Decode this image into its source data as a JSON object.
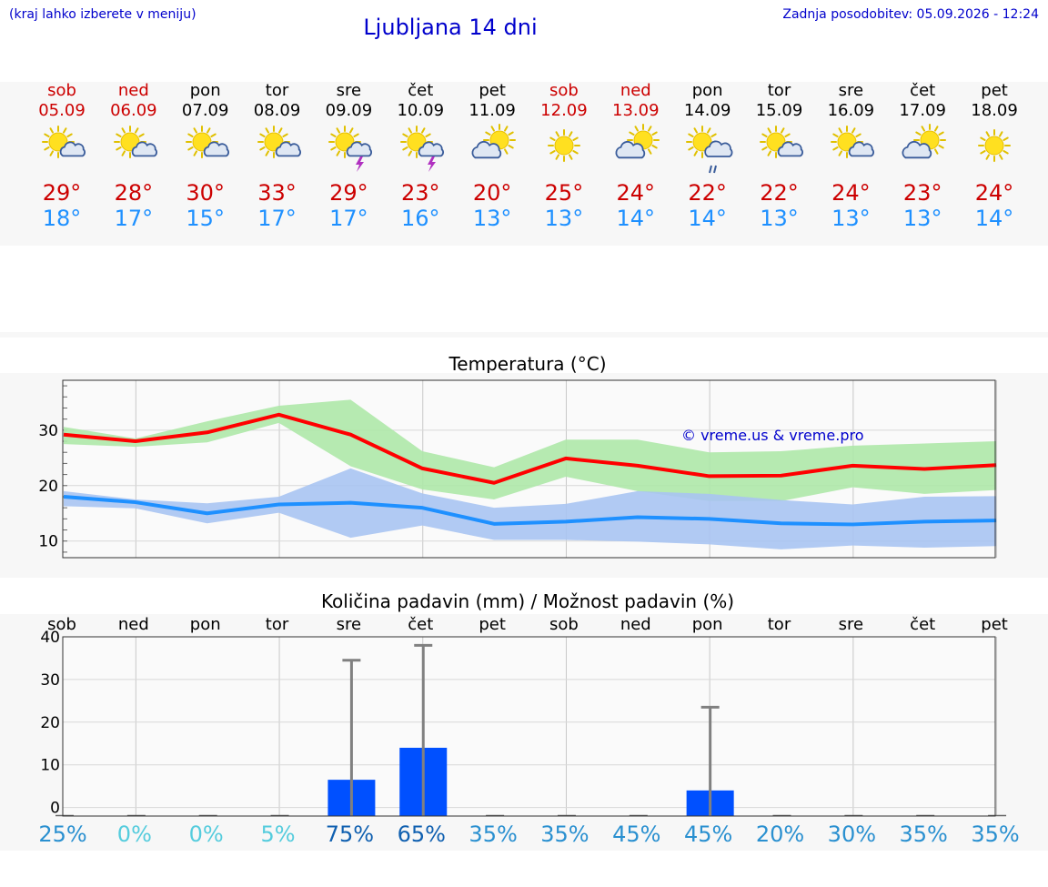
{
  "header": {
    "note": "(kraj lahko izberete v meniju)",
    "title": "Ljubljana 14 dni",
    "updated": "Zadnja posodobitev: 05.09.2026 - 12:24"
  },
  "colors": {
    "weekend": "#cc0000",
    "weekday": "#000000",
    "max_line": "#ff0000",
    "min_line": "#1e90ff",
    "max_band": "#aee8a8",
    "min_band": "#a9c4f2",
    "bar": "#0050ff",
    "whisker": "#808080"
  },
  "days": [
    {
      "name": "sob",
      "date": "05.09",
      "weekend": true,
      "icon": "sun-cloud-icon",
      "max": "29°",
      "min": "18°",
      "prob": "25%"
    },
    {
      "name": "ned",
      "date": "06.09",
      "weekend": true,
      "icon": "sun-cloud-icon",
      "max": "28°",
      "min": "17°",
      "prob": "0%"
    },
    {
      "name": "pon",
      "date": "07.09",
      "weekend": false,
      "icon": "sun-cloud-icon",
      "max": "30°",
      "min": "15°",
      "prob": "0%"
    },
    {
      "name": "tor",
      "date": "08.09",
      "weekend": false,
      "icon": "sun-cloud-icon",
      "max": "33°",
      "min": "17°",
      "prob": "5%"
    },
    {
      "name": "sre",
      "date": "09.09",
      "weekend": false,
      "icon": "sun-thunder-icon",
      "max": "29°",
      "min": "17°",
      "prob": "75%"
    },
    {
      "name": "čet",
      "date": "10.09",
      "weekend": false,
      "icon": "sun-thunder-icon",
      "max": "23°",
      "min": "16°",
      "prob": "65%"
    },
    {
      "name": "pet",
      "date": "11.09",
      "weekend": false,
      "icon": "cloud-sun-icon",
      "max": "20°",
      "min": "13°",
      "prob": "35%"
    },
    {
      "name": "sob",
      "date": "12.09",
      "weekend": true,
      "icon": "sun-icon",
      "max": "25°",
      "min": "13°",
      "prob": "35%"
    },
    {
      "name": "ned",
      "date": "13.09",
      "weekend": true,
      "icon": "cloud-sun-icon",
      "max": "24°",
      "min": "14°",
      "prob": "45%"
    },
    {
      "name": "pon",
      "date": "14.09",
      "weekend": false,
      "icon": "sun-rain-icon",
      "max": "22°",
      "min": "14°",
      "prob": "45%"
    },
    {
      "name": "tor",
      "date": "15.09",
      "weekend": false,
      "icon": "sun-cloud-icon",
      "max": "22°",
      "min": "13°",
      "prob": "20%"
    },
    {
      "name": "sre",
      "date": "16.09",
      "weekend": false,
      "icon": "sun-cloud-icon",
      "max": "24°",
      "min": "13°",
      "prob": "30%"
    },
    {
      "name": "čet",
      "date": "17.09",
      "weekend": false,
      "icon": "cloud-sun-icon",
      "max": "23°",
      "min": "13°",
      "prob": "35%"
    },
    {
      "name": "pet",
      "date": "18.09",
      "weekend": false,
      "icon": "sun-icon",
      "max": "24°",
      "min": "14°",
      "prob": "35%"
    }
  ],
  "chart_data": [
    {
      "type": "line",
      "title": "Temperatura (°C)",
      "watermark": "© vreme.us & vreme.pro",
      "x": [
        "05.09",
        "06.09",
        "07.09",
        "08.09",
        "09.09",
        "10.09",
        "11.09",
        "12.09",
        "13.09",
        "14.09",
        "15.09",
        "16.09",
        "17.09",
        "18.09"
      ],
      "ylim": [
        7,
        39
      ],
      "yticks": [
        10,
        20,
        30
      ],
      "grid": true,
      "series": [
        {
          "values": [
            29.2,
            28.0,
            29.6,
            32.8,
            29.2,
            23.1,
            20.5,
            24.9,
            23.6,
            21.7,
            21.8,
            23.6,
            23.0,
            23.7
          ]
        },
        {
          "values": [
            18.0,
            17.0,
            15.0,
            16.6,
            16.9,
            16.0,
            13.1,
            13.5,
            14.3,
            14.0,
            13.2,
            13.0,
            13.5,
            13.7
          ]
        }
      ],
      "bands": [
        {
          "lower": [
            27.5,
            27.0,
            27.8,
            31.3,
            23.5,
            19.3,
            17.5,
            21.6,
            19.0,
            17.2,
            17.2,
            19.7,
            18.5,
            19.2
          ],
          "upper": [
            30.6,
            28.5,
            31.6,
            34.4,
            35.5,
            26.2,
            23.3,
            28.3,
            28.3,
            26.0,
            26.2,
            27.2,
            27.6,
            28.0
          ]
        },
        {
          "lower": [
            16.3,
            15.9,
            13.2,
            15.1,
            10.6,
            12.8,
            10.2,
            10.2,
            9.9,
            9.4,
            8.5,
            9.2,
            8.8,
            9.1
          ],
          "upper": [
            19.0,
            17.5,
            16.8,
            18.0,
            23.1,
            18.6,
            16.0,
            16.7,
            19.0,
            18.5,
            17.4,
            16.6,
            18.0,
            18.1
          ]
        }
      ]
    },
    {
      "type": "bar",
      "title": "Količina padavin (mm) / Možnost padavin (%)",
      "categories": [
        "sob",
        "ned",
        "pon",
        "tor",
        "sre",
        "čet",
        "pet",
        "sob",
        "ned",
        "pon",
        "tor",
        "sre",
        "čet",
        "pet"
      ],
      "ylim": [
        -2,
        40
      ],
      "yticks": [
        0,
        10,
        20,
        30,
        40
      ],
      "grid": true,
      "series": [
        {
          "values": [
            0,
            0,
            0,
            0,
            6.5,
            14.0,
            0,
            0,
            0,
            4.0,
            0,
            0,
            0,
            0
          ],
          "whisker_max": [
            0,
            0,
            0,
            0,
            34.5,
            38.0,
            0,
            0,
            0,
            23.5,
            0,
            0,
            0,
            0
          ]
        }
      ],
      "probability_percent": [
        25,
        0,
        0,
        5,
        75,
        65,
        35,
        35,
        45,
        45,
        20,
        30,
        35,
        35
      ]
    }
  ]
}
